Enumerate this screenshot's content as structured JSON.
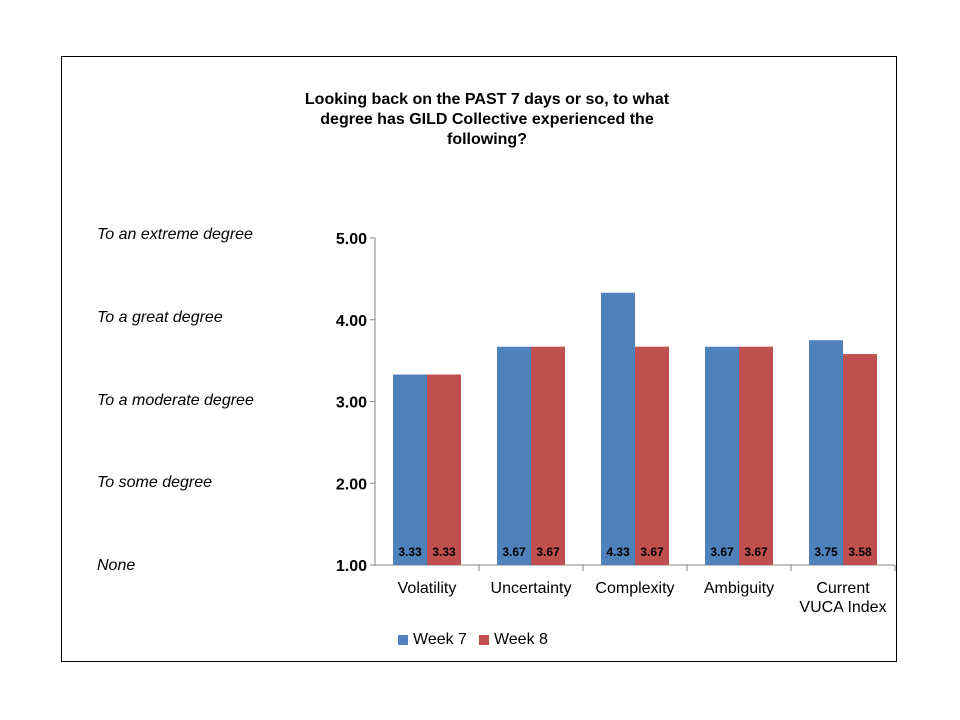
{
  "title_lines": [
    "Looking back on the PAST 7 days or so, to what",
    "degree has GILD Collective experienced the",
    "following?"
  ],
  "scale_labels": [
    "To an extreme degree",
    "To a great degree",
    "To a moderate degree",
    "To some degree",
    "None"
  ],
  "colors": {
    "week7": "#4F81BD",
    "week8": "#C0504D"
  },
  "chart_data": {
    "type": "bar",
    "categories": [
      [
        "Volatility"
      ],
      [
        "Uncertainty"
      ],
      [
        "Complexity"
      ],
      [
        "Ambiguity"
      ],
      [
        "Current",
        "VUCA Index"
      ]
    ],
    "series": [
      {
        "name": "Week 7",
        "values": [
          3.33,
          3.67,
          4.33,
          3.67,
          3.75
        ],
        "labels": [
          "3.33",
          "3.67",
          "4.33",
          "3.67",
          "3.75"
        ]
      },
      {
        "name": "Week 8",
        "values": [
          3.33,
          3.67,
          3.67,
          3.67,
          3.58
        ],
        "labels": [
          "3.33",
          "3.67",
          "3.67",
          "3.67",
          "3.58"
        ]
      }
    ],
    "yticks": [
      "5.00",
      "4.00",
      "3.00",
      "2.00",
      "1.00"
    ],
    "ylim": [
      1,
      5
    ],
    "grid": false,
    "legend": "bottom"
  }
}
